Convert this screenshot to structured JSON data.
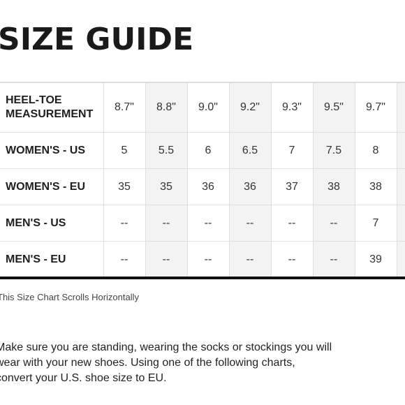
{
  "page_title": "SIZE GUIDE",
  "size_table": {
    "rows": [
      {
        "label_lines": [
          "HEEL-TOE",
          "MEASUREMENT"
        ],
        "cells": [
          "8.7\"",
          "8.8\"",
          "9.0\"",
          "9.2\"",
          "9.3\"",
          "9.5\"",
          "9.7\"",
          ""
        ]
      },
      {
        "label_lines": [
          "WOMEN'S - US"
        ],
        "cells": [
          "5",
          "5.5",
          "6",
          "6.5",
          "7",
          "7.5",
          "8",
          ""
        ]
      },
      {
        "label_lines": [
          "WOMEN'S - EU"
        ],
        "cells": [
          "35",
          "35",
          "36",
          "36",
          "37",
          "38",
          "38",
          ""
        ]
      },
      {
        "label_lines": [
          "MEN'S - US"
        ],
        "cells": [
          "--",
          "--",
          "--",
          "--",
          "--",
          "--",
          "7",
          ""
        ]
      },
      {
        "label_lines": [
          "MEN'S - EU"
        ],
        "cells": [
          "--",
          "--",
          "--",
          "--",
          "--",
          "--",
          "39",
          ""
        ]
      }
    ]
  },
  "scroll_note": "This Size Chart Scrolls Horizontally",
  "instructions": {
    "lines": [
      "Make sure you are standing, wearing the socks or stockings you will",
      "wear with your new shoes. Using one of the following charts,",
      "convert your U.S. shoe size to EU."
    ]
  },
  "colors": {
    "shaded_column": "#f3f3f3",
    "border": "#dddddd",
    "bottom_rule": "#111111"
  }
}
